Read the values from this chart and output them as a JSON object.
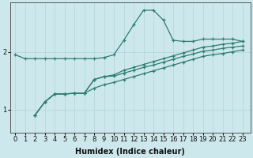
{
  "xlabel": "Humidex (Indice chaleur)",
  "bg_color": "#cde8ed",
  "line_color": "#2e7d72",
  "grid_color": "#afd4da",
  "x_ticks": [
    0,
    1,
    2,
    3,
    4,
    5,
    6,
    7,
    8,
    9,
    10,
    11,
    12,
    13,
    14,
    15,
    16,
    17,
    18,
    19,
    20,
    21,
    22,
    23
  ],
  "y_ticks": [
    1,
    2
  ],
  "ylim": [
    0.6,
    2.85
  ],
  "xlim": [
    -0.5,
    23.8
  ],
  "series_upper": [
    [
      0,
      1.95
    ],
    [
      1,
      1.88
    ],
    [
      2,
      1.88
    ],
    [
      3,
      1.88
    ],
    [
      4,
      1.88
    ],
    [
      5,
      1.88
    ],
    [
      6,
      1.88
    ],
    [
      7,
      1.88
    ],
    [
      8,
      1.88
    ],
    [
      9,
      1.9
    ],
    [
      10,
      1.95
    ],
    [
      11,
      2.2
    ],
    [
      12,
      2.47
    ],
    [
      13,
      2.72
    ],
    [
      14,
      2.72
    ],
    [
      15,
      2.55
    ],
    [
      16,
      2.2
    ],
    [
      17,
      2.18
    ],
    [
      18,
      2.18
    ],
    [
      19,
      2.22
    ],
    [
      20,
      2.22
    ],
    [
      21,
      2.22
    ],
    [
      22,
      2.22
    ],
    [
      23,
      2.18
    ]
  ],
  "series_line1": [
    [
      2,
      0.9
    ],
    [
      3,
      1.13
    ],
    [
      4,
      1.27
    ],
    [
      5,
      1.27
    ],
    [
      6,
      1.28
    ],
    [
      7,
      1.28
    ],
    [
      8,
      1.52
    ],
    [
      9,
      1.57
    ],
    [
      10,
      1.6
    ],
    [
      11,
      1.68
    ],
    [
      12,
      1.73
    ],
    [
      13,
      1.78
    ],
    [
      14,
      1.83
    ],
    [
      15,
      1.88
    ],
    [
      16,
      1.93
    ],
    [
      17,
      1.98
    ],
    [
      18,
      2.03
    ],
    [
      19,
      2.08
    ],
    [
      20,
      2.1
    ],
    [
      21,
      2.13
    ],
    [
      22,
      2.15
    ],
    [
      23,
      2.18
    ]
  ],
  "series_line2": [
    [
      2,
      0.9
    ],
    [
      3,
      1.13
    ],
    [
      4,
      1.27
    ],
    [
      5,
      1.27
    ],
    [
      6,
      1.28
    ],
    [
      7,
      1.28
    ],
    [
      8,
      1.52
    ],
    [
      9,
      1.57
    ],
    [
      10,
      1.58
    ],
    [
      11,
      1.63
    ],
    [
      12,
      1.68
    ],
    [
      13,
      1.73
    ],
    [
      14,
      1.77
    ],
    [
      15,
      1.82
    ],
    [
      16,
      1.87
    ],
    [
      17,
      1.92
    ],
    [
      18,
      1.96
    ],
    [
      19,
      2.01
    ],
    [
      20,
      2.03
    ],
    [
      21,
      2.06
    ],
    [
      22,
      2.08
    ],
    [
      23,
      2.1
    ]
  ],
  "series_line3": [
    [
      2,
      0.9
    ],
    [
      3,
      1.13
    ],
    [
      4,
      1.27
    ],
    [
      5,
      1.27
    ],
    [
      6,
      1.28
    ],
    [
      7,
      1.28
    ],
    [
      8,
      1.37
    ],
    [
      9,
      1.43
    ],
    [
      10,
      1.47
    ],
    [
      11,
      1.52
    ],
    [
      12,
      1.57
    ],
    [
      13,
      1.62
    ],
    [
      14,
      1.67
    ],
    [
      15,
      1.72
    ],
    [
      16,
      1.77
    ],
    [
      17,
      1.82
    ],
    [
      18,
      1.87
    ],
    [
      19,
      1.92
    ],
    [
      20,
      1.95
    ],
    [
      21,
      1.97
    ],
    [
      22,
      2.0
    ],
    [
      23,
      2.03
    ]
  ]
}
